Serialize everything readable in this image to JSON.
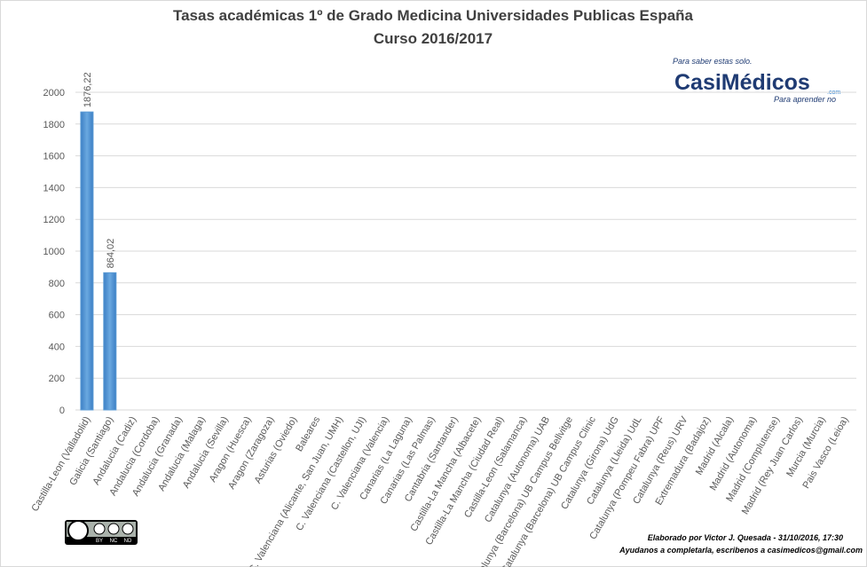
{
  "chart_data": {
    "type": "bar",
    "title": "Tasas académicas 1º de Grado Medicina Universidades Publicas España",
    "subtitle": "Curso 2016/2017",
    "categories": [
      "Castilla-Leon (Valladolid)",
      "Galicia (Santiago)",
      "Andalucia (Cadiz)",
      "Andalucia (Cordoba)",
      "Andalucia (Granada)",
      "Andalucia (Malaga)",
      "Andalucia (Sevilla)",
      "Aragon (Huesca)",
      "Aragon (Zaragoza)",
      "Asturias (Oviedo)",
      "Baleares",
      "C. Valenciana (Alicante, San Juan, UMH)",
      "C. Valenciana (Castellon, UJI)",
      "C. Valenciana (Valencia)",
      "Canarias (La Laguna)",
      "Canarias (Las Palmas)",
      "Cantabria (Santander)",
      "Castilla-La Mancha (Albacete)",
      "Castilla-La Mancha (Ciudad Real)",
      "Castilla-Leon (Salamanca)",
      "Catalunya (Autonoma) UAB",
      "Catalunya (Barcelona) UB Campus Bellvitge",
      "Catalunya (Barcelona) UB Campus Clinic",
      "Catalunya (Girona) UdG",
      "Catalunya (Lleida) UdL",
      "Catalunya (Pompeu Fabra) UPF",
      "Catalunya (Reus) URV",
      "Extremadura (Badajoz)",
      "Madrid (Alcala)",
      "Madrid (Autonoma)",
      "Madrid (Complutense)",
      "Madrid (Rey Juan Carlos)",
      "Murcia (Murcia)",
      "Pais Vasco (Leioa)"
    ],
    "values": [
      1876.22,
      864.02,
      null,
      null,
      null,
      null,
      null,
      null,
      null,
      null,
      null,
      null,
      null,
      null,
      null,
      null,
      null,
      null,
      null,
      null,
      null,
      null,
      null,
      null,
      null,
      null,
      null,
      null,
      null,
      null,
      null,
      null,
      null,
      null
    ],
    "value_labels": [
      "1876,22",
      "864,02",
      null,
      null,
      null,
      null,
      null,
      null,
      null,
      null,
      null,
      null,
      null,
      null,
      null,
      null,
      null,
      null,
      null,
      null,
      null,
      null,
      null,
      null,
      null,
      null,
      null,
      null,
      null,
      null,
      null,
      null,
      null,
      null
    ],
    "color": "#5b9bd5",
    "ylim": [
      0,
      2000
    ],
    "yticks": [
      0,
      200,
      400,
      600,
      800,
      1000,
      1200,
      1400,
      1600,
      1800,
      2000
    ],
    "grid": true
  },
  "logo": {
    "top": "Para saber estas solo.",
    "brand": "CasiMédicos",
    "domain": ".com",
    "bottom": "Para aprender no"
  },
  "license": {
    "by": "BY",
    "nc": "NC",
    "nd": "ND"
  },
  "footer": {
    "credit": "Elaborado por Victor J. Quesada - 31/10/2016, 17:30",
    "note": "Ayudanos a completarla, escribenos a casimedicos@gmail.com"
  }
}
